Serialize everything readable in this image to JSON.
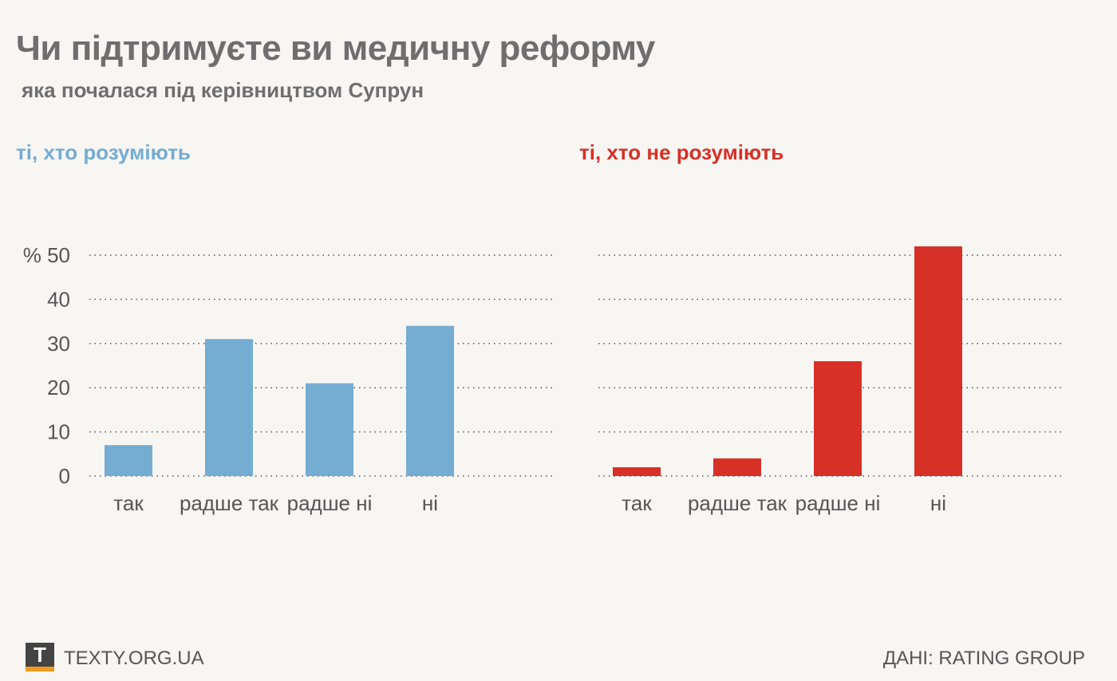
{
  "title": "Чи підтримуєте ви медичну реформу",
  "subtitle": "яка почалася під керівництвом Супрун",
  "colors": {
    "left": "#75acd2",
    "right": "#d73027",
    "text": "#6e6e6e",
    "logo_accent": "#f29a1f"
  },
  "chart_data": [
    {
      "type": "bar",
      "title": "ті, хто розуміють",
      "categories": [
        "так",
        "радше так",
        "радше ні",
        "ні"
      ],
      "values": [
        7,
        31,
        21,
        34
      ],
      "ylim": [
        0,
        50
      ],
      "yticks": [
        "0",
        "10",
        "20",
        "30",
        "40",
        "% 50"
      ],
      "grid": true,
      "color": "#75acd2"
    },
    {
      "type": "bar",
      "title": "ті, хто не розуміють",
      "categories": [
        "так",
        "радше так",
        "радше ні",
        "ні"
      ],
      "values": [
        2,
        4,
        26,
        52
      ],
      "ylim": [
        0,
        50
      ],
      "grid": true,
      "color": "#d73027"
    }
  ],
  "footer": {
    "logo": "T",
    "site": "TEXTY.ORG.UA",
    "source": "ДАНІ: RATING GROUP"
  }
}
